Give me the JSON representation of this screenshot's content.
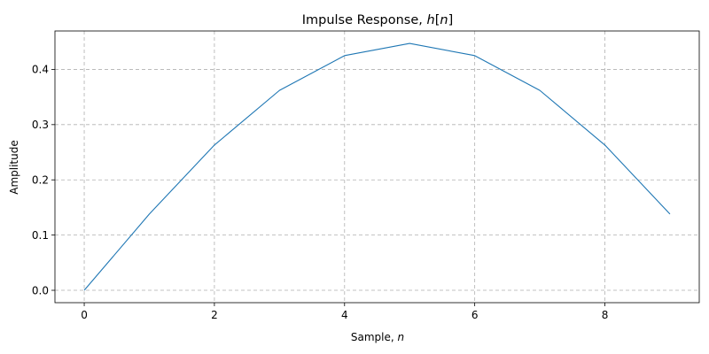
{
  "chart_data": {
    "type": "line",
    "title": {
      "text": "Impulse Response, ",
      "var": "h",
      "open": "[",
      "idx": "n",
      "close": "]"
    },
    "xlabel": {
      "text": "Sample, ",
      "var": "n"
    },
    "ylabel": "Amplitude",
    "x": [
      0,
      1,
      2,
      3,
      4,
      5,
      6,
      7,
      8,
      9
    ],
    "series": [
      {
        "values": [
          0.0,
          0.138,
          0.263,
          0.362,
          0.425,
          0.447,
          0.425,
          0.362,
          0.263,
          0.138
        ]
      }
    ],
    "xlim": [
      -0.45,
      9.45
    ],
    "ylim": [
      -0.0224,
      0.4696
    ],
    "xticks": [
      0,
      2,
      4,
      6,
      8
    ],
    "yticks": [
      0.0,
      0.1,
      0.2,
      0.3,
      0.4
    ],
    "ytick_labels": [
      "0.0",
      "0.1",
      "0.2",
      "0.3",
      "0.4"
    ],
    "grid": true,
    "line_color": "#1f77b4",
    "grid_color": "#b0b0b0"
  }
}
